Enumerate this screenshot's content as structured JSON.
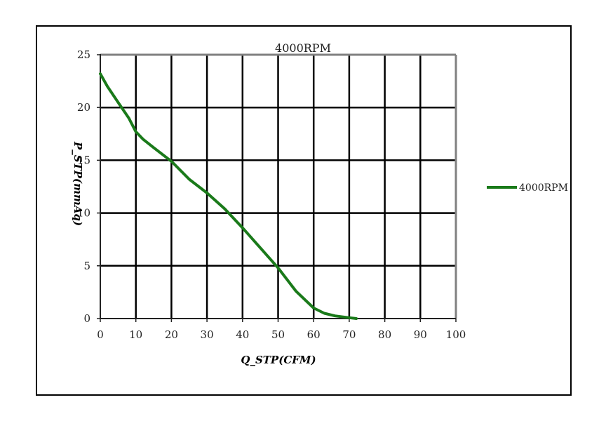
{
  "chart_data": {
    "type": "line",
    "title": "4000RPM",
    "xlabel": "Q_STP(CFM)",
    "ylabel": "P_STP(mmAq)",
    "xlim": [
      0,
      100
    ],
    "ylim": [
      0,
      25
    ],
    "x_ticks": [
      "0",
      "10",
      "20",
      "30",
      "40",
      "50",
      "60",
      "70",
      "80",
      "90",
      "100"
    ],
    "y_ticks": [
      "0",
      "5",
      "10",
      "15",
      "20",
      "25"
    ],
    "grid": true,
    "legend_position": "right",
    "series": [
      {
        "name": "4000RPM",
        "color": "#1a7a1a",
        "x": [
          0,
          2,
          5,
          8,
          10,
          12,
          15,
          20,
          25,
          30,
          35,
          40,
          45,
          50,
          55,
          60,
          63,
          66,
          70,
          72
        ],
        "y": [
          23.2,
          22.0,
          20.5,
          19.0,
          17.7,
          17.0,
          16.2,
          14.9,
          13.2,
          11.9,
          10.4,
          8.6,
          6.7,
          4.8,
          2.6,
          1.0,
          0.5,
          0.25,
          0.08,
          0
        ]
      }
    ]
  }
}
